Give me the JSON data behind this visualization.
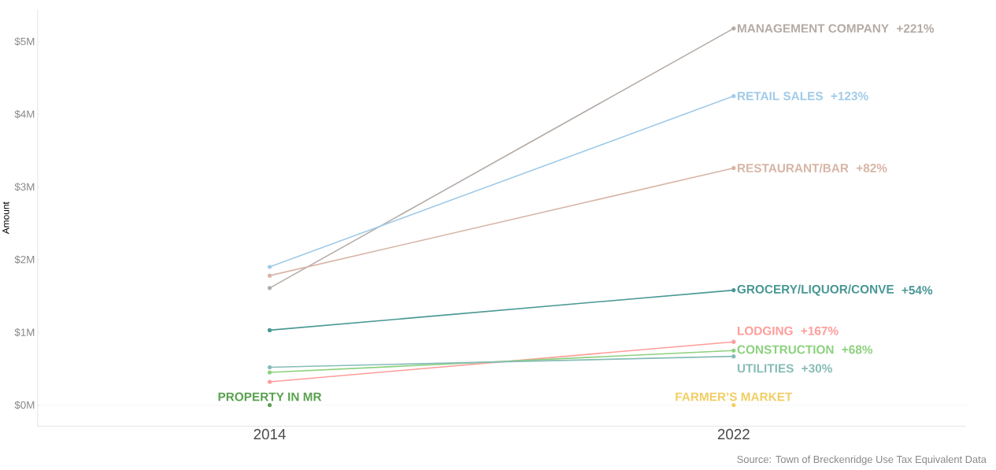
{
  "chart_data": {
    "type": "line",
    "ylabel": "Amount",
    "categories": [
      "2014",
      "2022"
    ],
    "ylim": [
      -0.29,
      5.44
    ],
    "yticks": [
      {
        "value": 0,
        "label": "$0M"
      },
      {
        "value": 1,
        "label": "$1M"
      },
      {
        "value": 2,
        "label": "$2M"
      },
      {
        "value": 3,
        "label": "$3M"
      },
      {
        "value": 4,
        "label": "$4M"
      },
      {
        "value": 5,
        "label": "$5M"
      }
    ],
    "marker": "circle",
    "line_style": "solid",
    "series": [
      {
        "name": "MANAGEMENT COMPANY",
        "color": "#b5aba6",
        "values": [
          1.61,
          5.18
        ]
      },
      {
        "name": "RETAIL SALES",
        "color": "#a0cbe8",
        "values": [
          1.9,
          4.25
        ]
      },
      {
        "name": "RESTAURANT/BAR",
        "color": "#d7b5a6",
        "values": [
          1.78,
          3.26
        ]
      },
      {
        "name": "GROCERY/LIQUOR/CONVE",
        "color": "#499894",
        "values": [
          1.03,
          1.58
        ]
      },
      {
        "name": "LODGING",
        "color": "#ff9d9a",
        "values": [
          0.32,
          0.87
        ]
      },
      {
        "name": "CONSTRUCTION",
        "color": "#8cd17d",
        "values": [
          0.45,
          0.75
        ]
      },
      {
        "name": "UTILITIES",
        "color": "#86bcb6",
        "values": [
          0.52,
          0.67
        ]
      },
      {
        "name": "PROPERTY IN MR",
        "color": "#59a14f",
        "values": [
          0,
          null
        ]
      },
      {
        "name": "FARMER’S MARKET",
        "color": "#f1ce63",
        "values": [
          null,
          0
        ]
      }
    ],
    "ref_lines": [
      {
        "axis": "y",
        "value": 0,
        "color": "#cccccc",
        "line_style": "dotted"
      }
    ],
    "annotations": [
      "+221%",
      "+123%",
      "+82%",
      "+54%",
      "+167%",
      "+68%",
      "+30%",
      "Source: Town of Breckenridge Use Tax Equivalent Data"
    ]
  }
}
